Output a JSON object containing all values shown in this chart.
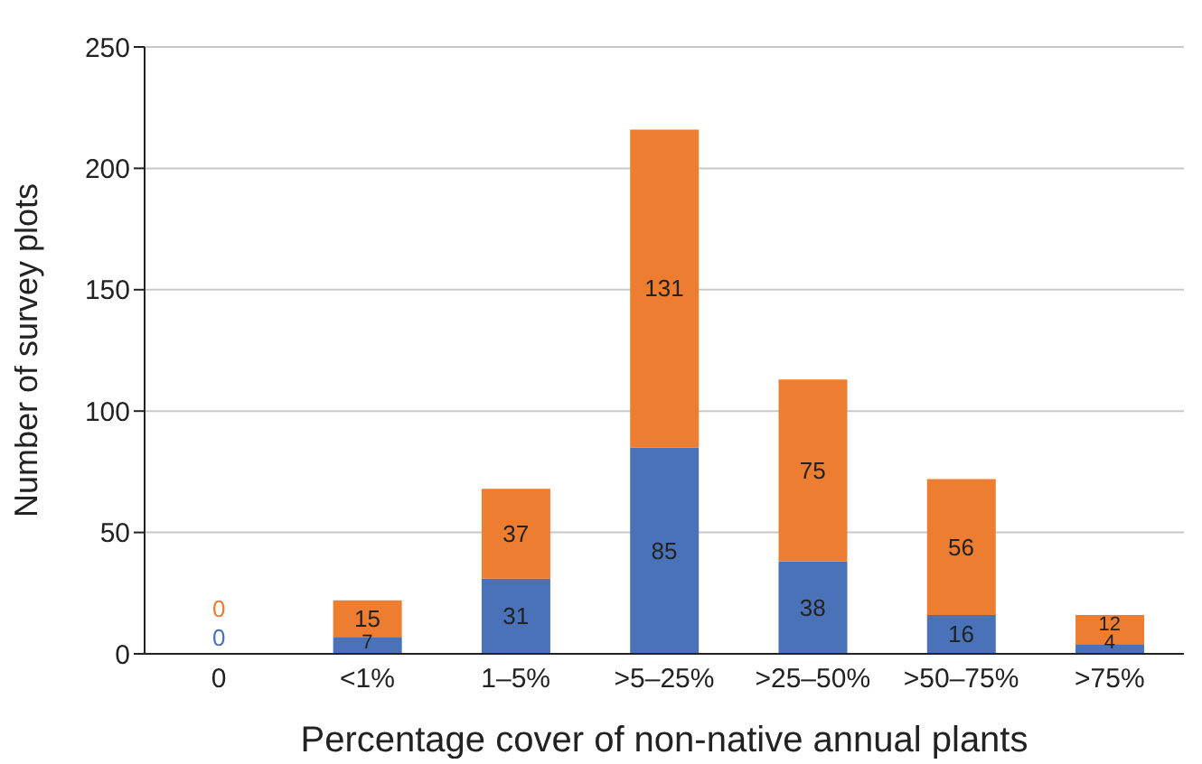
{
  "chart_data": {
    "type": "bar",
    "xlabel": "Percentage cover of non-native annual plants",
    "ylabel": "Number of survey plots",
    "categories": [
      "0",
      "<1%",
      "1–5%",
      ">5–25%",
      ">25–50%",
      ">50–75%",
      ">75%"
    ],
    "series": [
      {
        "color": "#4a72b8",
        "values": [
          0,
          7,
          31,
          85,
          38,
          16,
          4
        ]
      },
      {
        "color": "#ed7d31",
        "values": [
          0,
          15,
          37,
          131,
          75,
          56,
          12
        ]
      }
    ],
    "stacked": true,
    "ylim": [
      0,
      250
    ],
    "yticks": [
      0,
      50,
      100,
      150,
      200,
      250
    ],
    "grid": "y",
    "data_labels": true
  }
}
